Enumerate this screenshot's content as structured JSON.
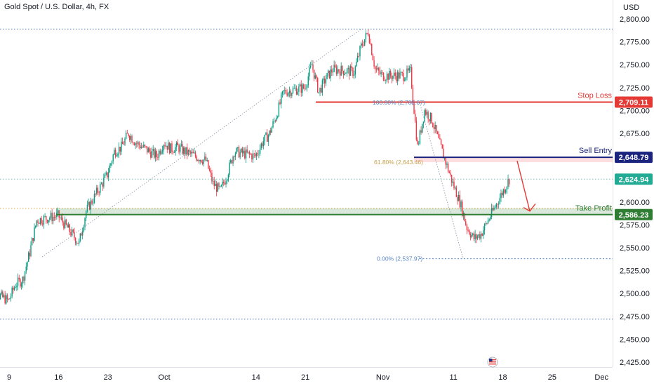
{
  "header": {
    "symbol_title": "Gold Spot / U.S. Dollar, 4h, FX",
    "currency": "USD"
  },
  "colors": {
    "up": "#089981",
    "down": "#f23645",
    "stop": "#e53935",
    "entry": "#1a237e",
    "tp": "#2e7d32",
    "fib": "#5b87c5",
    "fib_618": "#c8a04a",
    "last": "#22ab94"
  },
  "chart_data": {
    "type": "candlestick",
    "title": "Gold Spot / U.S. Dollar, 4h, FX",
    "ylabel": "USD",
    "ylim": [
      2415,
      2810
    ],
    "y_ticks": [
      2800,
      2775,
      2750,
      2725,
      2700,
      2675,
      2650,
      2625,
      2600,
      2575,
      2550,
      2525,
      2500,
      2475,
      2450,
      2425
    ],
    "y_tick_labels": [
      "2,800.00",
      "2,775.00",
      "2,750.00",
      "2,725.00",
      "2,700.00",
      "2,675.00",
      "2,650.00",
      "2,625.00",
      "2,600.00",
      "2,575.00",
      "2,550.00",
      "2,525.00",
      "2,500.00",
      "2,475.00",
      "2,450.00",
      "2,425.00"
    ],
    "x_ticks": [
      {
        "label": "9",
        "date": "2024-09-09"
      },
      {
        "label": "16",
        "date": "2024-09-16"
      },
      {
        "label": "23",
        "date": "2024-09-23"
      },
      {
        "label": "Oct",
        "date": "2024-10-01"
      },
      {
        "label": "14",
        "date": "2024-10-14"
      },
      {
        "label": "21",
        "date": "2024-10-21"
      },
      {
        "label": "Nov",
        "date": "2024-11-01"
      },
      {
        "label": "11",
        "date": "2024-11-11"
      },
      {
        "label": "18",
        "date": "2024-11-18"
      },
      {
        "label": "25",
        "date": "2024-11-25"
      },
      {
        "label": "Dec",
        "date": "2024-12-02"
      }
    ],
    "price_path": [
      [
        "2024-09-06",
        2505
      ],
      [
        "2024-09-09",
        2492
      ],
      [
        "2024-09-10",
        2510
      ],
      [
        "2024-09-11",
        2515
      ],
      [
        "2024-09-12",
        2545
      ],
      [
        "2024-09-13",
        2580
      ],
      [
        "2024-09-16",
        2585
      ],
      [
        "2024-09-17",
        2575
      ],
      [
        "2024-09-18",
        2565
      ],
      [
        "2024-09-19",
        2555
      ],
      [
        "2024-09-20",
        2590
      ],
      [
        "2024-09-23",
        2630
      ],
      [
        "2024-09-24",
        2655
      ],
      [
        "2024-09-25",
        2660
      ],
      [
        "2024-09-26",
        2675
      ],
      [
        "2024-09-27",
        2665
      ],
      [
        "2024-09-30",
        2650
      ],
      [
        "2024-10-01",
        2665
      ],
      [
        "2024-10-02",
        2658
      ],
      [
        "2024-10-03",
        2660
      ],
      [
        "2024-10-04",
        2655
      ],
      [
        "2024-10-07",
        2645
      ],
      [
        "2024-10-08",
        2620
      ],
      [
        "2024-10-09",
        2612
      ],
      [
        "2024-10-10",
        2630
      ],
      [
        "2024-10-11",
        2655
      ],
      [
        "2024-10-14",
        2650
      ],
      [
        "2024-10-15",
        2665
      ],
      [
        "2024-10-16",
        2675
      ],
      [
        "2024-10-17",
        2695
      ],
      [
        "2024-10-18",
        2720
      ],
      [
        "2024-10-21",
        2725
      ],
      [
        "2024-10-22",
        2750
      ],
      [
        "2024-10-23",
        2720
      ],
      [
        "2024-10-24",
        2735
      ],
      [
        "2024-10-25",
        2745
      ],
      [
        "2024-10-28",
        2742
      ],
      [
        "2024-10-29",
        2770
      ],
      [
        "2024-10-30",
        2786
      ],
      [
        "2024-10-31",
        2745
      ],
      [
        "2024-11-01",
        2738
      ],
      [
        "2024-11-04",
        2738
      ],
      [
        "2024-11-05",
        2742
      ],
      [
        "2024-11-06",
        2660
      ],
      [
        "2024-11-07",
        2700
      ],
      [
        "2024-11-08",
        2690
      ],
      [
        "2024-11-11",
        2620
      ],
      [
        "2024-11-12",
        2600
      ],
      [
        "2024-11-13",
        2572
      ],
      [
        "2024-11-14",
        2560
      ],
      [
        "2024-11-15",
        2565
      ],
      [
        "2024-11-18",
        2610
      ],
      [
        "2024-11-19",
        2625
      ]
    ],
    "candles_per_day": 6,
    "levels": {
      "stop_loss": {
        "label": "Stop Loss",
        "value": 2709.11,
        "price_text": "2,709.11"
      },
      "sell_entry": {
        "label": "Sell Entry",
        "value": 2648.79,
        "price_text": "2,648.79"
      },
      "last_price": {
        "value": 2624.94,
        "price_text": "2,624.94"
      },
      "take_profit": {
        "label": "Take Profit",
        "value": 2586.23,
        "price_text": "2,586.23"
      }
    },
    "fib_labels": {
      "f100": {
        "text": "100.00% (2,708.67)",
        "value": 2708.67
      },
      "f618": {
        "text": "61.80% (2,643.46)",
        "value": 2643.46
      },
      "f0": {
        "text": "0.00% (2,537.97)",
        "value": 2537.97
      }
    },
    "dotted_levels": [
      2789,
      2625,
      2593,
      2472
    ]
  }
}
